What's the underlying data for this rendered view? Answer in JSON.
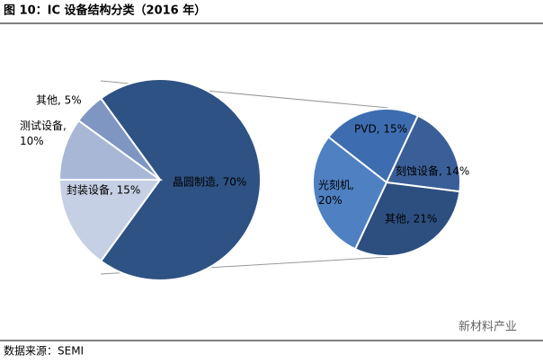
{
  "chart_data": {
    "type": "pie-of-pie",
    "title": "图 10：IC 设备结构分类（2016 年）",
    "values": [
      70,
      15,
      10,
      5
    ],
    "value_labels": [
      "晶圆制造, 70%",
      "封装设备, 15%",
      "测试设备, 10%",
      "其他, 5%"
    ],
    "colors": [
      "#2e5283",
      "#c6d0e4",
      "#a8b7d6",
      "#7f96c3"
    ],
    "secondary": {
      "values": [
        15,
        14,
        21,
        20
      ],
      "value_labels": [
        "PVD, 15%",
        "刻蚀设备, 14%",
        "其他, 21%",
        "光刻机, 20%"
      ],
      "colors": [
        "#3d6db0",
        "#3a5f98",
        "#2d4f80",
        "#4e80c2"
      ]
    },
    "source": "数据来源：SEMI",
    "watermark": "新材料产业"
  }
}
